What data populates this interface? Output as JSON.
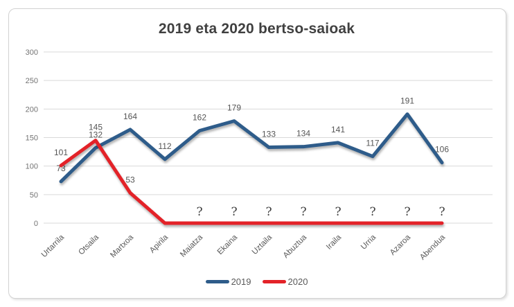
{
  "chart_data": {
    "type": "line",
    "title": "2019 eta 2020 bertso-saioak",
    "categories": [
      "Urtarrila",
      "Otsaila",
      "Martxoa",
      "Apirila",
      "Maiatza",
      "Ekaina",
      "Uztaila",
      "Abuztua",
      "Iraila",
      "Urria",
      "Azaroa",
      "Abendua"
    ],
    "series": [
      {
        "name": "2019",
        "color": "#2E5C8A",
        "values": [
          73,
          132,
          164,
          112,
          162,
          179,
          133,
          134,
          141,
          117,
          191,
          106
        ],
        "labels": [
          "73",
          "132",
          "164",
          "112",
          "162",
          "179",
          "133",
          "134",
          "141",
          "117",
          "191",
          "106"
        ]
      },
      {
        "name": "2020",
        "color": "#E32228",
        "values": [
          101,
          145,
          53,
          0,
          0,
          0,
          0,
          0,
          0,
          0,
          0,
          0
        ],
        "labels": [
          "101",
          "145",
          "53",
          "",
          "?",
          "?",
          "?",
          "?",
          "?",
          "?",
          "?",
          "?"
        ]
      }
    ],
    "ylabel": "",
    "xlabel": "",
    "ylim": [
      0,
      300
    ],
    "yticks": [
      0,
      50,
      100,
      150,
      200,
      250,
      300
    ],
    "grid": true,
    "legend_position": "bottom",
    "colors": {
      "gridline": "#d9d9d9",
      "tick_text": "#737373",
      "category_text": "#595959",
      "data_label_text": "#555555",
      "question_text": "#3c3c3c",
      "title_text": "#404040"
    }
  }
}
